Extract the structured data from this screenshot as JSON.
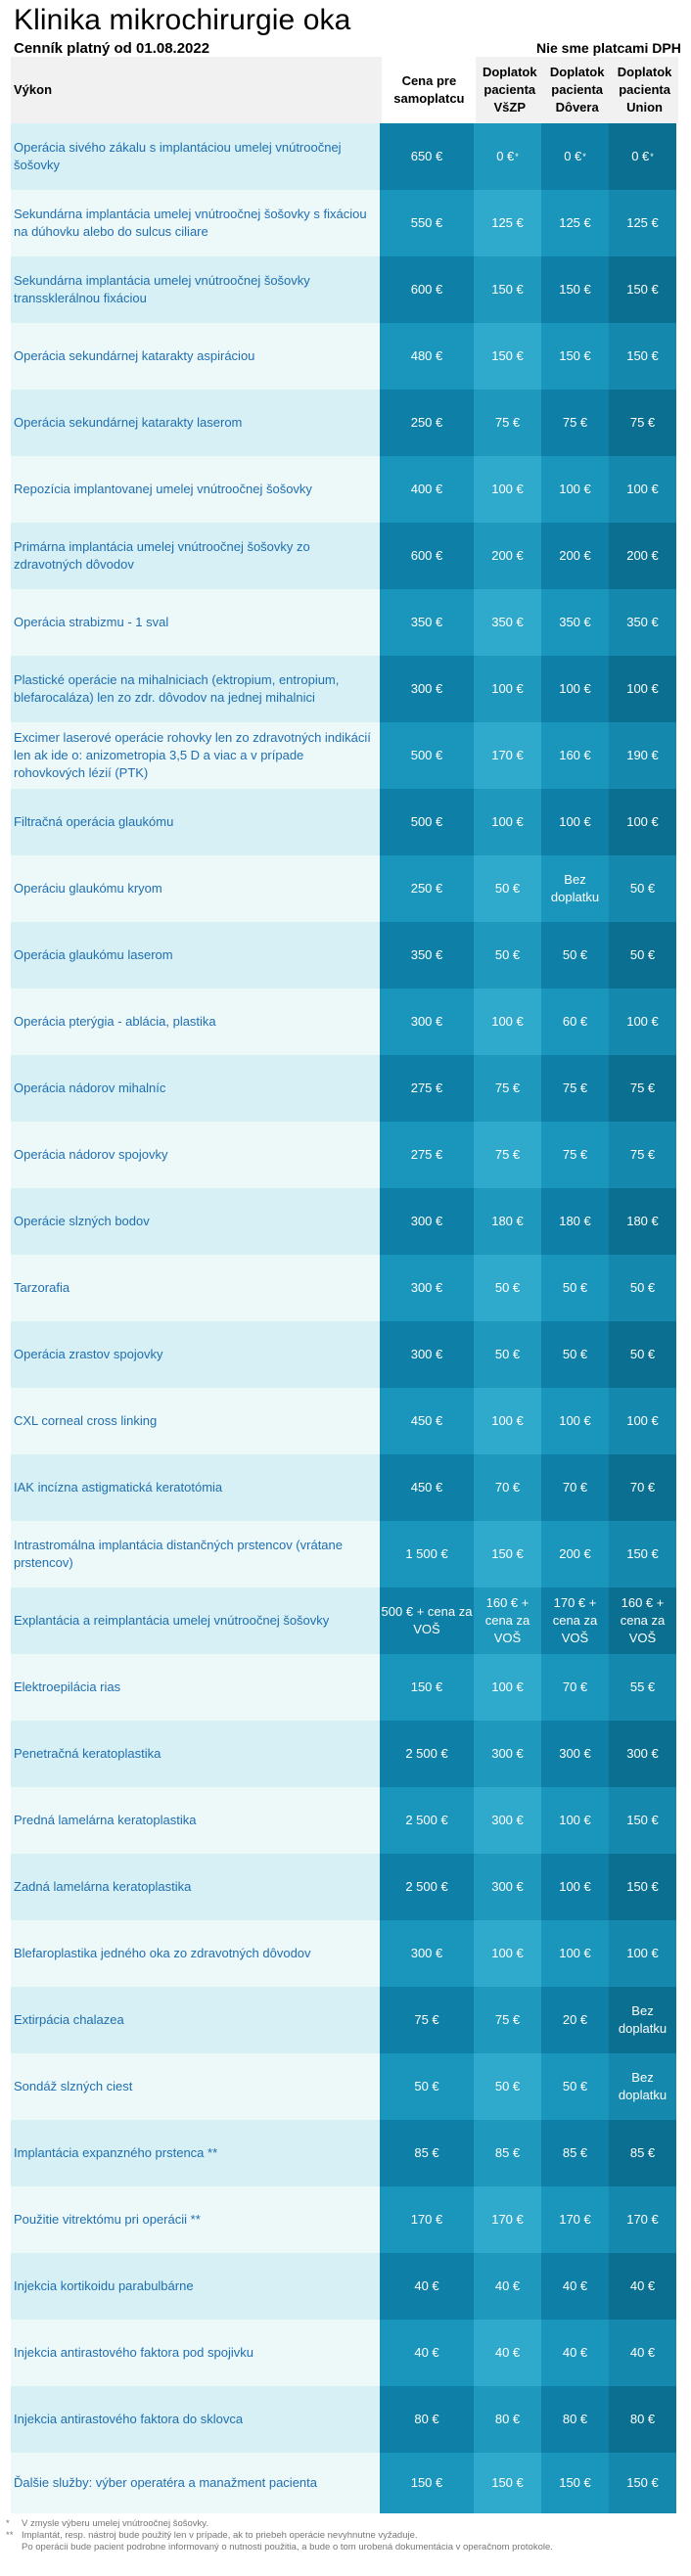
{
  "header": {
    "title": "Klinika mikrochirurgie oka",
    "subtitle": "Cenník platný od 01.08.2022",
    "vat_note": "Nie sme platcami DPH"
  },
  "table": {
    "columns": [
      "Výkon",
      "Cena pre samoplatcu",
      "Doplatok pacienta VšZP",
      "Doplatok pacienta Dôvera",
      "Doplatok pacienta Union"
    ],
    "rows": [
      {
        "name": "Operácia sivého zákalu s implantáciou umelej vnútroočnej šošovky",
        "c1": "650 €",
        "c2": "0 €",
        "c3": "0 €",
        "c4": "0 €"
      },
      {
        "name": "Sekundárna implantácia umelej vnútroočnej šošovky s fixáciou na dúhovku alebo do sulcus ciliare",
        "c1": "550 €",
        "c2": "125 €",
        "c3": "125 €",
        "c4": "125 €"
      },
      {
        "name": "Sekundárna implantácia umelej vnútroočnej šošovky transsklerálnou fixáciou",
        "c1": "600 €",
        "c2": "150 €",
        "c3": "150 €",
        "c4": "150 €"
      },
      {
        "name": "Operácia sekundárnej katarakty aspiráciou",
        "c1": "480 €",
        "c2": "150 €",
        "c3": "150 €",
        "c4": "150 €"
      },
      {
        "name": "Operácia sekundárnej katarakty laserom",
        "c1": "250 €",
        "c2": "75 €",
        "c3": "75 €",
        "c4": "75 €"
      },
      {
        "name": "Repozícia implantovanej umelej vnútroočnej šošovky",
        "c1": "400 €",
        "c2": "100 €",
        "c3": "100 €",
        "c4": "100 €"
      },
      {
        "name": "Primárna implantácia umelej vnútroočnej šošovky zo zdravotných dôvodov",
        "c1": "600 €",
        "c2": "200 €",
        "c3": "200 €",
        "c4": "200 €"
      },
      {
        "name": "Operácia strabizmu - 1 sval",
        "c1": "350 €",
        "c2": "350 €",
        "c3": "350 €",
        "c4": "350 €"
      },
      {
        "name": "Plastické operácie na mihalniciach (ektropium, entropium, blefarocaláza) len zo zdr. dôvodov na jednej mihalnici",
        "c1": "300 €",
        "c2": "100 €",
        "c3": "100 €",
        "c4": "100 €"
      },
      {
        "name": "Excimer laserové operácie rohovky len zo zdravotných indikácií len ak ide o: anizometropia 3,5 D a viac a v prípade rohovkových lézií (PTK)",
        "c1": "500 €",
        "c2": "170 €",
        "c3": "160 €",
        "c4": "190 €"
      },
      {
        "name": "Filtračná operácia glaukómu",
        "c1": "500 €",
        "c2": "100 €",
        "c3": "100 €",
        "c4": "100 €"
      },
      {
        "name": "Operáciu glaukómu kryom",
        "c1": "250 €",
        "c2": "50 €",
        "c3": "Bez doplatku",
        "c4": "50 €"
      },
      {
        "name": "Operácia glaukómu laserom",
        "c1": "350 €",
        "c2": "50 €",
        "c3": "50 €",
        "c4": "50 €"
      },
      {
        "name": "Operácia pterýgia - ablácia, plastika",
        "c1": "300 €",
        "c2": "100 €",
        "c3": "60 €",
        "c4": "100 €"
      },
      {
        "name": "Operácia nádorov mihalníc",
        "c1": "275 €",
        "c2": "75 €",
        "c3": "75 €",
        "c4": "75 €"
      },
      {
        "name": "Operácia nádorov spojovky",
        "c1": "275 €",
        "c2": "75 €",
        "c3": "75 €",
        "c4": "75 €"
      },
      {
        "name": "Operácie slzných bodov",
        "c1": "300 €",
        "c2": "180 €",
        "c3": "180 €",
        "c4": "180 €"
      },
      {
        "name": "Tarzorafia",
        "c1": "300 €",
        "c2": "50 €",
        "c3": "50 €",
        "c4": "50 €"
      },
      {
        "name": "Operácia zrastov spojovky",
        "c1": "300 €",
        "c2": "50 €",
        "c3": "50 €",
        "c4": "50 €"
      },
      {
        "name": "CXL corneal cross linking",
        "c1": "450 €",
        "c2": "100 €",
        "c3": "100 €",
        "c4": "100 €"
      },
      {
        "name": "IAK incízna astigmatická keratotómia",
        "c1": "450 €",
        "c2": "70 €",
        "c3": "70 €",
        "c4": "70 €"
      },
      {
        "name": "Intrastromálna implantácia distančných prstencov (vrátane prstencov)",
        "c1": "1 500 €",
        "c2": "150 €",
        "c3": "200 €",
        "c4": "150 €"
      },
      {
        "name": "Explantácia a reimplantácia umelej vnútroočnej šošovky",
        "c1": "500 € + cena za VOŠ",
        "c2": "160 € + cena za VOŠ",
        "c3": "170 € + cena za VOŠ",
        "c4": "160 € + cena za VOŠ"
      },
      {
        "name": "Elektroepilácia rias",
        "c1": "150 €",
        "c2": "100 €",
        "c3": "70 €",
        "c4": "55 €"
      },
      {
        "name": "Penetračná keratoplastika",
        "c1": "2 500 €",
        "c2": "300 €",
        "c3": "300 €",
        "c4": "300 €"
      },
      {
        "name": "Predná lamelárna keratoplastika",
        "c1": "2 500 €",
        "c2": "300 €",
        "c3": "100 €",
        "c4": "150 €"
      },
      {
        "name": "Zadná lamelárna keratoplastika",
        "c1": "2 500 €",
        "c2": "300 €",
        "c3": "100 €",
        "c4": "150 €"
      },
      {
        "name": "Blefaroplastika jedného oka zo zdravotných dôvodov",
        "c1": "300 €",
        "c2": "100 €",
        "c3": "100 €",
        "c4": "100 €"
      },
      {
        "name": "Extirpácia chalazea",
        "c1": "75 €",
        "c2": "75 €",
        "c3": "20 €",
        "c4": "Bez doplatku"
      },
      {
        "name": "Sondáž slzných ciest",
        "c1": "50 €",
        "c2": "50 €",
        "c3": "50 €",
        "c4": "Bez doplatku"
      },
      {
        "name": "Implantácia expanzného prstenca **",
        "c1": "85 €",
        "c2": "85 €",
        "c3": "85 €",
        "c4": "85 €"
      },
      {
        "name": "Použitie vitrektómu pri operácii **",
        "c1": "170 €",
        "c2": "170 €",
        "c3": "170 €",
        "c4": "170 €"
      },
      {
        "name": "Injekcia kortikoidu parabulbárne",
        "c1": "40 €",
        "c2": "40 €",
        "c3": "40 €",
        "c4": "40 €"
      },
      {
        "name": "Injekcia antirastového faktora pod spojivku",
        "c1": "40 €",
        "c2": "40 €",
        "c3": "40 €",
        "c4": "40 €"
      },
      {
        "name": "Injekcia antirastového faktora do sklovca",
        "c1": "80 €",
        "c2": "80 €",
        "c3": "80 €",
        "c4": "80 €"
      },
      {
        "name": "Ďalšie služby: výber operatéra a manažment pacienta",
        "c1": "150 €",
        "c2": "150 €",
        "c3": "150 €",
        "c4": "150 €"
      }
    ]
  },
  "footnotes": {
    "fn1_mark": "*",
    "fn1": "V zmysle výberu umelej vnútroočnej šošovky.",
    "fn2_mark": "**",
    "fn2": "Implantát, resp. nástroj bude použitý len v prípade, ak to priebeh operácie nevyhnutne vyžaduje.",
    "fn2_cont": "Po operácii bude pacient podrobne informovaný o nutnosti použitia, a bude o tom urobená dokumentácia v operačnom protokole."
  },
  "colors": {
    "name_cell_odd": "#d6f0f5",
    "name_cell_even": "#edf8f9",
    "price_dark": "#0e7fa6",
    "price_light": "#1f98bd",
    "link_text": "#1f6fb0"
  }
}
